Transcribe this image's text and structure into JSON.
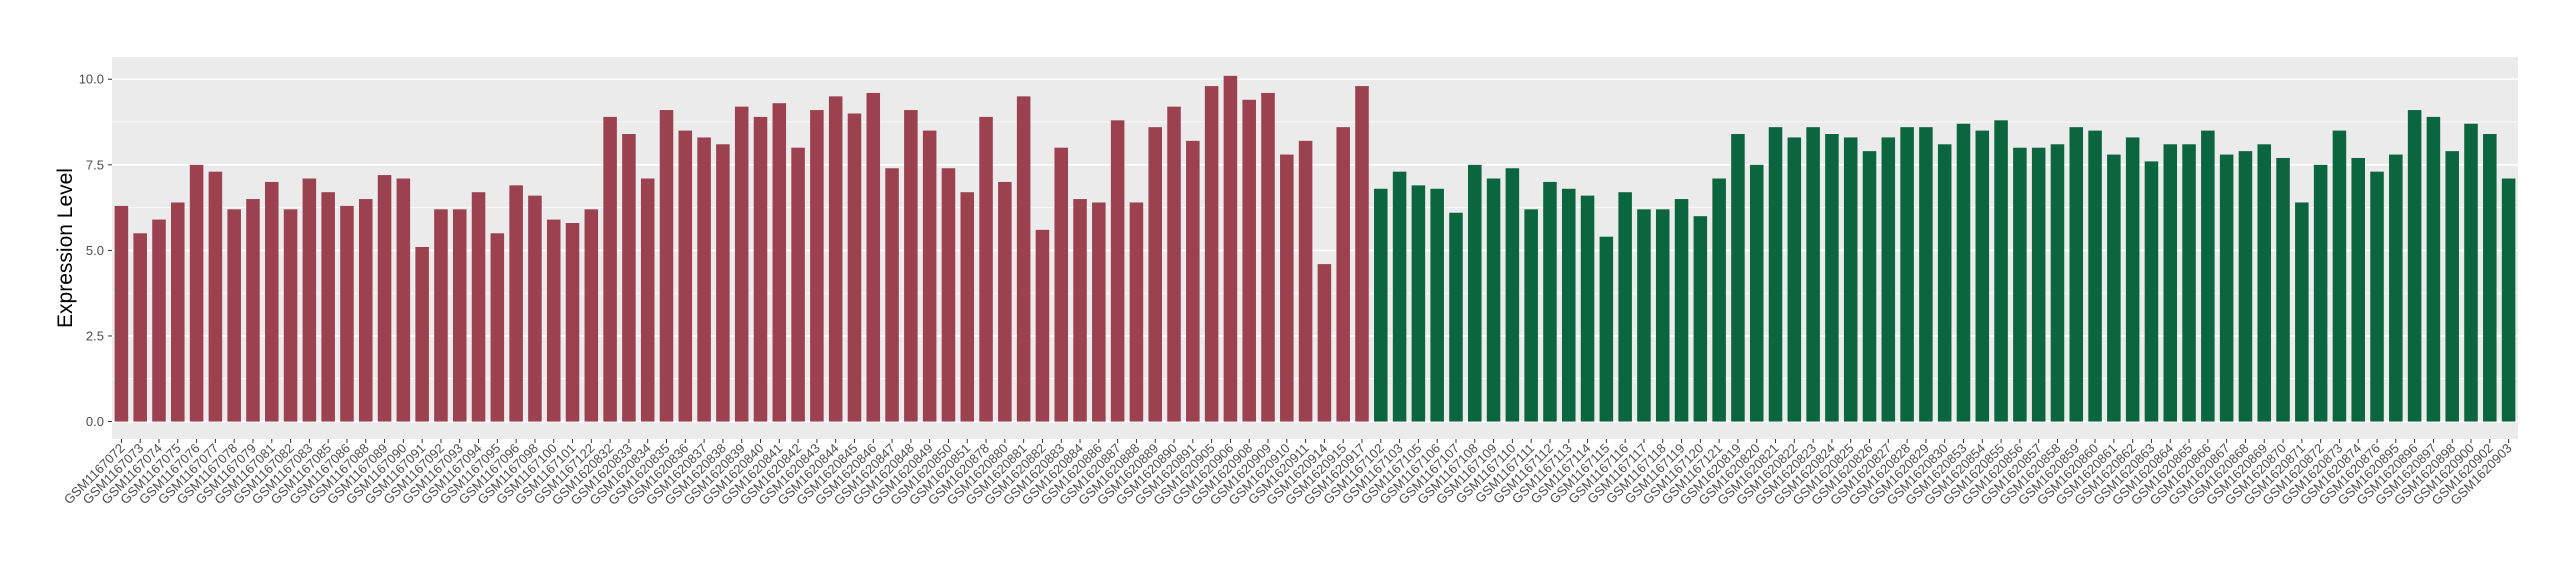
{
  "chart_data": {
    "type": "bar",
    "y_label": "Expression Level",
    "categories": [
      "GSM1167072",
      "GSM1167073",
      "GSM1167074",
      "GSM1167075",
      "GSM1167076",
      "GSM1167077",
      "GSM1167078",
      "GSM1167079",
      "GSM1167081",
      "GSM1167082",
      "GSM1167083",
      "GSM1167085",
      "GSM1167086",
      "GSM1167088",
      "GSM1167089",
      "GSM1167090",
      "GSM1167091",
      "GSM1167092",
      "GSM1167093",
      "GSM1167094",
      "GSM1167095",
      "GSM1167096",
      "GSM1167098",
      "GSM1167100",
      "GSM1167101",
      "GSM1167122",
      "GSM1620832",
      "GSM1620833",
      "GSM1620834",
      "GSM1620835",
      "GSM1620836",
      "GSM1620837",
      "GSM1620838",
      "GSM1620839",
      "GSM1620840",
      "GSM1620841",
      "GSM1620842",
      "GSM1620843",
      "GSM1620844",
      "GSM1620845",
      "GSM1620846",
      "GSM1620847",
      "GSM1620848",
      "GSM1620849",
      "GSM1620850",
      "GSM1620851",
      "GSM1620878",
      "GSM1620880",
      "GSM1620881",
      "GSM1620882",
      "GSM1620883",
      "GSM1620884",
      "GSM1620886",
      "GSM1620887",
      "GSM1620888",
      "GSM1620889",
      "GSM1620890",
      "GSM1620891",
      "GSM1620905",
      "GSM1620906",
      "GSM1620908",
      "GSM1620909",
      "GSM1620910",
      "GSM1620911",
      "GSM1620914",
      "GSM1620915",
      "GSM1620917",
      "GSM1167102",
      "GSM1167103",
      "GSM1167105",
      "GSM1167106",
      "GSM1167107",
      "GSM1167108",
      "GSM1167109",
      "GSM1167110",
      "GSM1167111",
      "GSM1167112",
      "GSM1167113",
      "GSM1167114",
      "GSM1167115",
      "GSM1167116",
      "GSM1167117",
      "GSM1167118",
      "GSM1167119",
      "GSM1167120",
      "GSM1167121",
      "GSM1620819",
      "GSM1620820",
      "GSM1620821",
      "GSM1620822",
      "GSM1620823",
      "GSM1620824",
      "GSM1620825",
      "GSM1620826",
      "GSM1620827",
      "GSM1620828",
      "GSM1620829",
      "GSM1620830",
      "GSM1620853",
      "GSM1620854",
      "GSM1620855",
      "GSM1620856",
      "GSM1620857",
      "GSM1620858",
      "GSM1620859",
      "GSM1620860",
      "GSM1620861",
      "GSM1620862",
      "GSM1620863",
      "GSM1620864",
      "GSM1620865",
      "GSM1620866",
      "GSM1620867",
      "GSM1620868",
      "GSM1620869",
      "GSM1620870",
      "GSM1620871",
      "GSM1620872",
      "GSM1620873",
      "GSM1620874",
      "GSM1620876",
      "GSM1620895",
      "GSM1620896",
      "GSM1620897",
      "GSM1620898",
      "GSM1620900",
      "GSM1620902",
      "GSM1620903"
    ],
    "values": [
      6.3,
      5.5,
      5.9,
      6.4,
      7.5,
      7.3,
      6.2,
      6.5,
      7.0,
      6.2,
      7.1,
      6.7,
      6.3,
      6.5,
      7.2,
      7.1,
      5.1,
      6.2,
      6.2,
      6.7,
      5.5,
      6.9,
      6.6,
      5.9,
      5.8,
      6.2,
      8.9,
      8.4,
      7.1,
      9.1,
      8.5,
      8.3,
      8.1,
      9.2,
      8.9,
      9.3,
      8.0,
      9.1,
      9.5,
      9.0,
      9.6,
      7.4,
      9.1,
      8.5,
      7.4,
      6.7,
      8.9,
      7.0,
      9.5,
      5.6,
      8.0,
      6.5,
      6.4,
      8.8,
      6.4,
      8.6,
      9.2,
      8.2,
      9.8,
      10.1,
      9.4,
      9.6,
      7.8,
      8.2,
      4.6,
      8.6,
      9.8,
      6.8,
      7.3,
      6.9,
      6.8,
      6.1,
      7.5,
      7.1,
      7.4,
      6.2,
      7.0,
      6.8,
      6.6,
      5.4,
      6.7,
      6.2,
      6.2,
      6.5,
      6.0,
      7.1,
      8.4,
      7.5,
      8.6,
      8.3,
      8.6,
      8.4,
      8.3,
      7.9,
      8.3,
      8.6,
      8.6,
      8.1,
      8.7,
      8.5,
      8.8,
      8.0,
      8.0,
      8.1,
      8.6,
      8.5,
      7.8,
      8.3,
      7.6,
      8.1,
      8.1,
      8.5,
      7.8,
      7.9,
      8.1,
      7.7,
      6.4,
      7.5,
      8.5,
      7.7,
      7.3,
      7.8,
      9.1,
      8.9,
      7.9,
      8.7,
      8.4,
      7.1
    ],
    "colors": [
      "#9b4150",
      "#9b4150",
      "#9b4150",
      "#9b4150",
      "#9b4150",
      "#9b4150",
      "#9b4150",
      "#9b4150",
      "#9b4150",
      "#9b4150",
      "#9b4150",
      "#9b4150",
      "#9b4150",
      "#9b4150",
      "#9b4150",
      "#9b4150",
      "#9b4150",
      "#9b4150",
      "#9b4150",
      "#9b4150",
      "#9b4150",
      "#9b4150",
      "#9b4150",
      "#9b4150",
      "#9b4150",
      "#9b4150",
      "#9b4150",
      "#9b4150",
      "#9b4150",
      "#9b4150",
      "#9b4150",
      "#9b4150",
      "#9b4150",
      "#9b4150",
      "#9b4150",
      "#9b4150",
      "#9b4150",
      "#9b4150",
      "#9b4150",
      "#9b4150",
      "#9b4150",
      "#9b4150",
      "#9b4150",
      "#9b4150",
      "#9b4150",
      "#9b4150",
      "#9b4150",
      "#9b4150",
      "#9b4150",
      "#9b4150",
      "#9b4150",
      "#9b4150",
      "#9b4150",
      "#9b4150",
      "#9b4150",
      "#9b4150",
      "#9b4150",
      "#9b4150",
      "#9b4150",
      "#9b4150",
      "#9b4150",
      "#9b4150",
      "#9b4150",
      "#9b4150",
      "#9b4150",
      "#9b4150",
      "#9b4150",
      "#0b6640",
      "#0b6640",
      "#0b6640",
      "#0b6640",
      "#0b6640",
      "#0b6640",
      "#0b6640",
      "#0b6640",
      "#0b6640",
      "#0b6640",
      "#0b6640",
      "#0b6640",
      "#0b6640",
      "#0b6640",
      "#0b6640",
      "#0b6640",
      "#0b6640",
      "#0b6640",
      "#0b6640",
      "#0b6640",
      "#0b6640",
      "#0b6640",
      "#0b6640",
      "#0b6640",
      "#0b6640",
      "#0b6640",
      "#0b6640",
      "#0b6640",
      "#0b6640",
      "#0b6640",
      "#0b6640",
      "#0b6640",
      "#0b6640",
      "#0b6640",
      "#0b6640",
      "#0b6640",
      "#0b6640",
      "#0b6640",
      "#0b6640",
      "#0b6640",
      "#0b6640",
      "#0b6640",
      "#0b6640",
      "#0b6640",
      "#0b6640",
      "#0b6640",
      "#0b6640",
      "#0b6640",
      "#0b6640",
      "#0b6640",
      "#0b6640",
      "#0b6640",
      "#0b6640",
      "#0b6640",
      "#0b6640",
      "#0b6640",
      "#0b6640",
      "#0b6640",
      "#0b6640",
      "#0b6640",
      "#0b6640"
    ],
    "ylim": [
      -0.51,
      10.65
    ],
    "yticks": [
      {
        "value": 0,
        "label": "0.0"
      },
      {
        "value": 2.5,
        "label": "2.5"
      },
      {
        "value": 5,
        "label": "5.0"
      },
      {
        "value": 7.5,
        "label": "7.5"
      },
      {
        "value": 10,
        "label": "10.0"
      }
    ],
    "grid": true
  }
}
